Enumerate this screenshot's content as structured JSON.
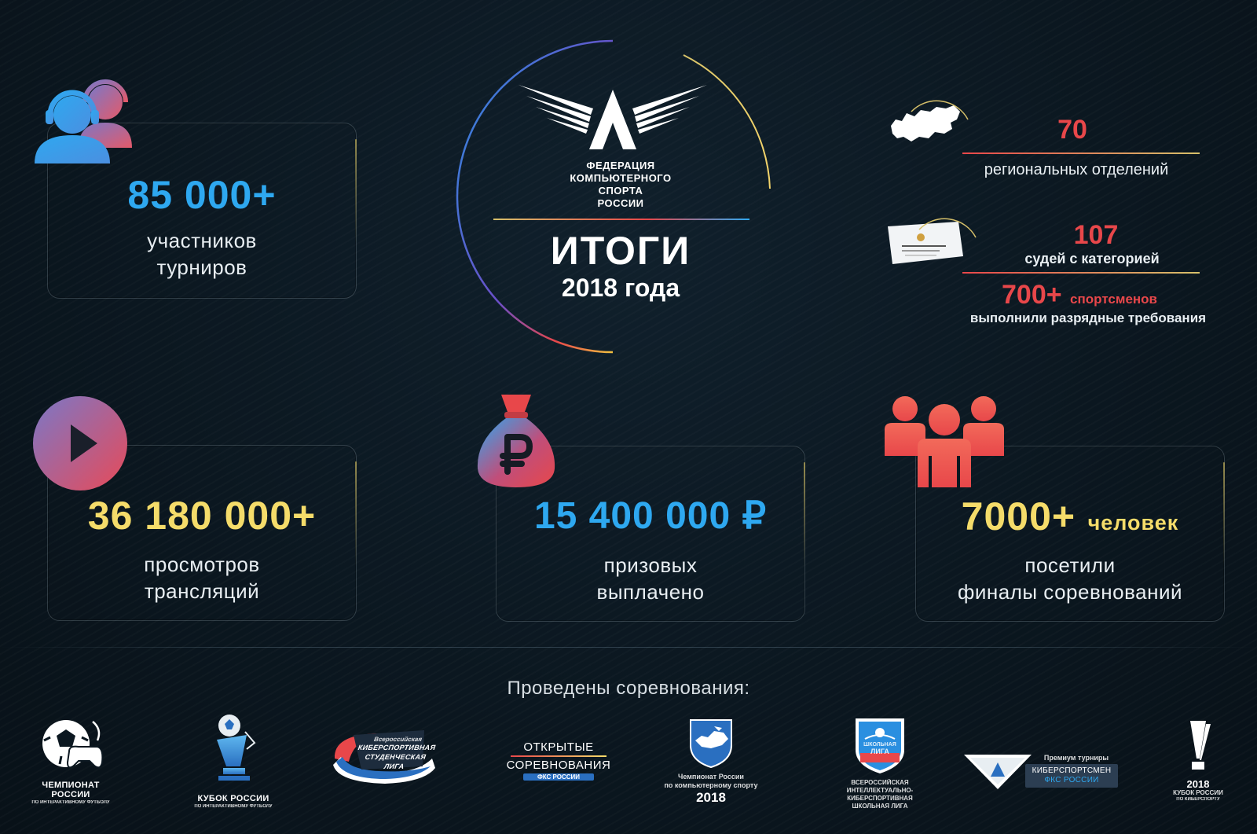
{
  "header": {
    "federation_name": [
      "ФЕДЕРАЦИЯ",
      "КОМПЬЮТЕРНОГО",
      "СПОРТА",
      "РОССИИ"
    ],
    "title": "ИТОГИ",
    "subtitle": "2018 года"
  },
  "stats": {
    "participants": {
      "value": "85 000+",
      "label_line1": "участников",
      "label_line2": "турниров"
    },
    "views": {
      "value": "36 180 000+",
      "label_line1": "просмотров",
      "label_line2": "трансляций"
    },
    "prize": {
      "value": "15 400 000 ₽",
      "label_line1": "призовых",
      "label_line2": "выплачено"
    },
    "visitors": {
      "value": "7000+",
      "unit": "человек",
      "label_line1": "посетили",
      "label_line2": "финалы соревнований"
    },
    "regions": {
      "value": "70",
      "label": "региональных отделений"
    },
    "judges": {
      "value": "107",
      "label": "судей с категорией"
    },
    "athletes": {
      "value": "700+",
      "unit": "спортсменов",
      "label": "выполнили разрядные требования"
    }
  },
  "competitions": {
    "heading": "Проведены соревнования:",
    "items": [
      {
        "name_line1": "ЧЕМПИОНАТ",
        "name_line2": "РОССИИ",
        "tiny": "ПО ИНТЕРАКТИВНОМУ ФУТБОЛУ"
      },
      {
        "name_line1": "КУБОК РОССИИ",
        "tiny": "ПО ИНТЕРАКТИВНОМУ ФУТБОЛУ"
      },
      {
        "line1": "Всероссийская",
        "line2": "КИБЕРСПОРТИВНАЯ",
        "line3": "СТУДЕНЧЕСКАЯ ЛИГА"
      },
      {
        "line1": "ОТКРЫТЫЕ",
        "line2": "СОРЕВНОВАНИЯ",
        "line3": "ФКС РОССИИ"
      },
      {
        "line1": "Чемпионат России",
        "line2": "по компьютерному спорту",
        "year": "2018"
      },
      {
        "badge1": "ШКОЛЬНАЯ",
        "badge2": "ЛИГА",
        "line1": "ВСЕРОССИЙСКАЯ",
        "line2": "ИНТЕЛЛЕКТУАЛЬНО-",
        "line3": "КИБЕРСПОРТИВНАЯ",
        "line4": "ШКОЛЬНАЯ ЛИГА"
      },
      {
        "top": "Премиум турниры",
        "line1": "КИБЕРСПОРТСМЕН",
        "line2": "ФКС РОССИИ"
      },
      {
        "year": "2018",
        "line1": "КУБОК РОССИИ",
        "tiny": "ПО КИБЕРСПОРТУ"
      }
    ]
  },
  "colors": {
    "blue": "#2ea8f0",
    "yellow": "#f5dc6a",
    "red": "#e8474a",
    "bg": "#0b1720"
  }
}
